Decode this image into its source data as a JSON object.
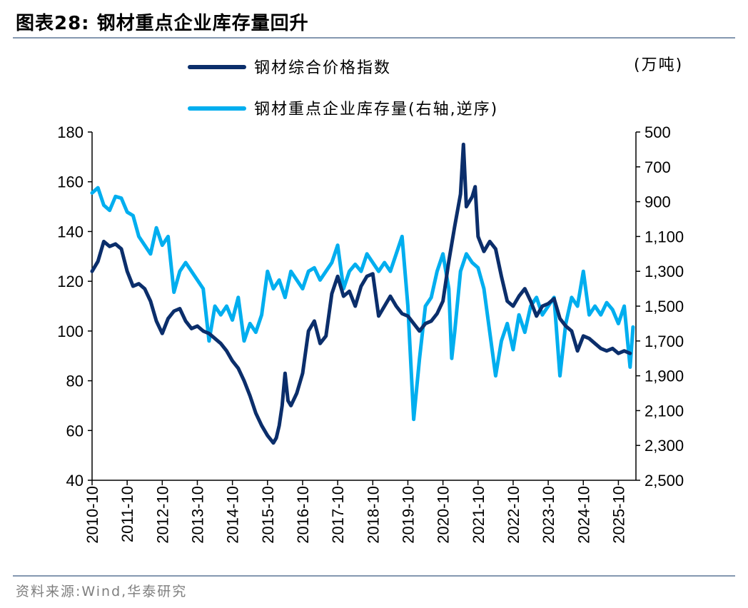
{
  "header": {
    "title": "图表28:  钢材重点企业库存量回升"
  },
  "footer": {
    "source": "资料来源:Wind,华泰研究"
  },
  "chart_data": {
    "type": "line",
    "unit_label": "(万吨)",
    "legend_position": "top",
    "grid": false,
    "x_tick_labels": [
      "2010-10",
      "2011-10",
      "2012-10",
      "2013-10",
      "2014-10",
      "2015-10",
      "2016-10",
      "2017-10",
      "2018-10",
      "2019-10",
      "2020-10",
      "2021-10",
      "2022-10",
      "2023-10",
      "2024-10",
      "2025-10"
    ],
    "x_range": [
      "2010-10",
      "2026-04"
    ],
    "y_left": {
      "range": [
        40,
        180
      ],
      "ticks": [
        40,
        60,
        80,
        100,
        120,
        140,
        160,
        180
      ]
    },
    "y_right": {
      "range": [
        500,
        2500
      ],
      "inverted": true,
      "ticks": [
        "500",
        "700",
        "900",
        "1,100",
        "1,300",
        "1,500",
        "1,700",
        "1,900",
        "2,100",
        "2,300",
        "2,500"
      ]
    },
    "colors": {
      "price": "#0b2e6b",
      "inventory": "#00aeef"
    },
    "series": [
      {
        "name": "钢材综合价格指数",
        "axis": "left",
        "points": [
          [
            "2010-10",
            124
          ],
          [
            "2010-12",
            128
          ],
          [
            "2011-02",
            136
          ],
          [
            "2011-04",
            134
          ],
          [
            "2011-06",
            135
          ],
          [
            "2011-08",
            133
          ],
          [
            "2011-10",
            124
          ],
          [
            "2011-12",
            118
          ],
          [
            "2012-02",
            119
          ],
          [
            "2012-04",
            117
          ],
          [
            "2012-06",
            112
          ],
          [
            "2012-08",
            104
          ],
          [
            "2012-10",
            99
          ],
          [
            "2012-12",
            105
          ],
          [
            "2013-02",
            108
          ],
          [
            "2013-04",
            109
          ],
          [
            "2013-06",
            104
          ],
          [
            "2013-08",
            101
          ],
          [
            "2013-10",
            102
          ],
          [
            "2013-12",
            100
          ],
          [
            "2014-02",
            99
          ],
          [
            "2014-04",
            97
          ],
          [
            "2014-06",
            95
          ],
          [
            "2014-08",
            92
          ],
          [
            "2014-10",
            88
          ],
          [
            "2014-12",
            85
          ],
          [
            "2015-02",
            80
          ],
          [
            "2015-04",
            74
          ],
          [
            "2015-06",
            67
          ],
          [
            "2015-08",
            62
          ],
          [
            "2015-10",
            58
          ],
          [
            "2015-12",
            55
          ],
          [
            "2016-01",
            57
          ],
          [
            "2016-02",
            62
          ],
          [
            "2016-03",
            70
          ],
          [
            "2016-04",
            83
          ],
          [
            "2016-05",
            72
          ],
          [
            "2016-06",
            70
          ],
          [
            "2016-08",
            75
          ],
          [
            "2016-10",
            83
          ],
          [
            "2016-12",
            100
          ],
          [
            "2017-02",
            104
          ],
          [
            "2017-04",
            95
          ],
          [
            "2017-06",
            98
          ],
          [
            "2017-08",
            115
          ],
          [
            "2017-10",
            122
          ],
          [
            "2017-12",
            114
          ],
          [
            "2018-02",
            116
          ],
          [
            "2018-04",
            110
          ],
          [
            "2018-06",
            118
          ],
          [
            "2018-08",
            122
          ],
          [
            "2018-10",
            123
          ],
          [
            "2018-12",
            106
          ],
          [
            "2019-02",
            110
          ],
          [
            "2019-04",
            114
          ],
          [
            "2019-06",
            110
          ],
          [
            "2019-08",
            107
          ],
          [
            "2019-10",
            106
          ],
          [
            "2019-12",
            103
          ],
          [
            "2020-02",
            100
          ],
          [
            "2020-04",
            103
          ],
          [
            "2020-06",
            104
          ],
          [
            "2020-08",
            107
          ],
          [
            "2020-10",
            112
          ],
          [
            "2020-12",
            128
          ],
          [
            "2021-02",
            142
          ],
          [
            "2021-04",
            155
          ],
          [
            "2021-05",
            175
          ],
          [
            "2021-06",
            150
          ],
          [
            "2021-08",
            154
          ],
          [
            "2021-09",
            158
          ],
          [
            "2021-10",
            138
          ],
          [
            "2021-12",
            132
          ],
          [
            "2022-02",
            136
          ],
          [
            "2022-04",
            133
          ],
          [
            "2022-06",
            122
          ],
          [
            "2022-08",
            112
          ],
          [
            "2022-10",
            110
          ],
          [
            "2022-12",
            114
          ],
          [
            "2023-02",
            117
          ],
          [
            "2023-04",
            112
          ],
          [
            "2023-06",
            106
          ],
          [
            "2023-08",
            110
          ],
          [
            "2023-10",
            111
          ],
          [
            "2023-12",
            113
          ],
          [
            "2024-02",
            105
          ],
          [
            "2024-04",
            102
          ],
          [
            "2024-06",
            100
          ],
          [
            "2024-08",
            92
          ],
          [
            "2024-10",
            98
          ],
          [
            "2024-12",
            97
          ],
          [
            "2025-02",
            95
          ],
          [
            "2025-04",
            93
          ],
          [
            "2025-06",
            92
          ],
          [
            "2025-08",
            93
          ],
          [
            "2025-10",
            91
          ],
          [
            "2025-12",
            92
          ],
          [
            "2026-02",
            91
          ]
        ]
      },
      {
        "name": "钢材重点企业库存量(右轴,逆序)",
        "axis": "right",
        "points": [
          [
            "2010-10",
            850
          ],
          [
            "2010-12",
            820
          ],
          [
            "2011-02",
            920
          ],
          [
            "2011-04",
            950
          ],
          [
            "2011-06",
            870
          ],
          [
            "2011-08",
            880
          ],
          [
            "2011-10",
            960
          ],
          [
            "2011-12",
            980
          ],
          [
            "2012-02",
            1100
          ],
          [
            "2012-04",
            1150
          ],
          [
            "2012-06",
            1200
          ],
          [
            "2012-08",
            1050
          ],
          [
            "2012-10",
            1150
          ],
          [
            "2012-12",
            1100
          ],
          [
            "2013-02",
            1420
          ],
          [
            "2013-04",
            1300
          ],
          [
            "2013-06",
            1250
          ],
          [
            "2013-08",
            1300
          ],
          [
            "2013-10",
            1350
          ],
          [
            "2013-12",
            1400
          ],
          [
            "2014-02",
            1700
          ],
          [
            "2014-04",
            1500
          ],
          [
            "2014-06",
            1550
          ],
          [
            "2014-08",
            1500
          ],
          [
            "2014-10",
            1580
          ],
          [
            "2014-12",
            1450
          ],
          [
            "2015-02",
            1700
          ],
          [
            "2015-04",
            1600
          ],
          [
            "2015-06",
            1650
          ],
          [
            "2015-08",
            1550
          ],
          [
            "2015-10",
            1300
          ],
          [
            "2015-12",
            1400
          ],
          [
            "2016-02",
            1350
          ],
          [
            "2016-04",
            1450
          ],
          [
            "2016-06",
            1300
          ],
          [
            "2016-08",
            1350
          ],
          [
            "2016-10",
            1400
          ],
          [
            "2016-12",
            1300
          ],
          [
            "2017-02",
            1280
          ],
          [
            "2017-04",
            1350
          ],
          [
            "2017-06",
            1300
          ],
          [
            "2017-08",
            1250
          ],
          [
            "2017-10",
            1150
          ],
          [
            "2017-12",
            1400
          ],
          [
            "2018-02",
            1300
          ],
          [
            "2018-04",
            1260
          ],
          [
            "2018-06",
            1300
          ],
          [
            "2018-08",
            1200
          ],
          [
            "2018-10",
            1250
          ],
          [
            "2018-12",
            1300
          ],
          [
            "2019-02",
            1250
          ],
          [
            "2019-04",
            1300
          ],
          [
            "2019-06",
            1200
          ],
          [
            "2019-08",
            1100
          ],
          [
            "2019-10",
            1500
          ],
          [
            "2019-12",
            2150
          ],
          [
            "2020-02",
            1800
          ],
          [
            "2020-04",
            1500
          ],
          [
            "2020-06",
            1450
          ],
          [
            "2020-08",
            1300
          ],
          [
            "2020-10",
            1200
          ],
          [
            "2020-12",
            1400
          ],
          [
            "2021-01",
            1800
          ],
          [
            "2021-02",
            1650
          ],
          [
            "2021-04",
            1300
          ],
          [
            "2021-06",
            1200
          ],
          [
            "2021-08",
            1250
          ],
          [
            "2021-10",
            1280
          ],
          [
            "2021-12",
            1400
          ],
          [
            "2022-02",
            1650
          ],
          [
            "2022-04",
            1900
          ],
          [
            "2022-06",
            1700
          ],
          [
            "2022-08",
            1600
          ],
          [
            "2022-10",
            1750
          ],
          [
            "2022-12",
            1550
          ],
          [
            "2023-02",
            1650
          ],
          [
            "2023-04",
            1500
          ],
          [
            "2023-06",
            1450
          ],
          [
            "2023-08",
            1550
          ],
          [
            "2023-10",
            1500
          ],
          [
            "2023-12",
            1450
          ],
          [
            "2024-02",
            1900
          ],
          [
            "2024-04",
            1600
          ],
          [
            "2024-06",
            1450
          ],
          [
            "2024-08",
            1500
          ],
          [
            "2024-10",
            1300
          ],
          [
            "2024-12",
            1550
          ],
          [
            "2025-02",
            1500
          ],
          [
            "2025-04",
            1550
          ],
          [
            "2025-06",
            1480
          ],
          [
            "2025-08",
            1520
          ],
          [
            "2025-10",
            1600
          ],
          [
            "2025-12",
            1500
          ],
          [
            "2026-02",
            1850
          ],
          [
            "2026-03",
            1620
          ]
        ]
      }
    ]
  }
}
